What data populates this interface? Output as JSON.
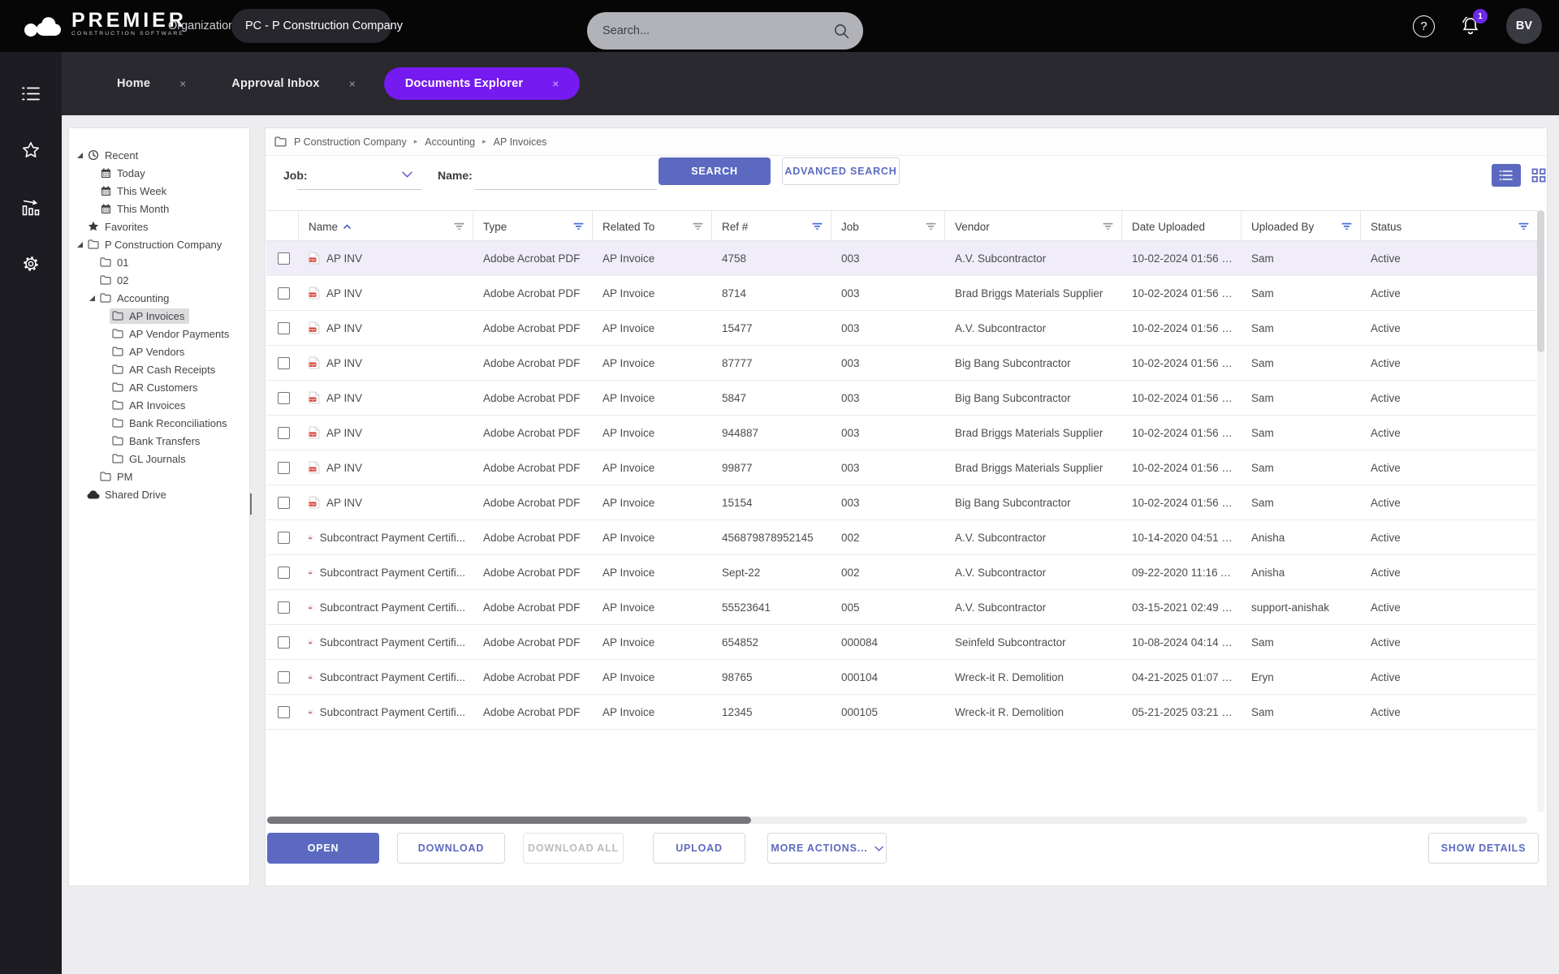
{
  "colors": {
    "accent_purple": "#751af0",
    "accent_indigo": "#5b6ac0",
    "filter_active_blue": "#4a6bd4",
    "filter_inactive_gray": "#96989b",
    "notification_badge": "#6d28e8",
    "selected_row": "#f0edf9"
  },
  "header": {
    "brand_name": "PREMIER",
    "brand_tagline": "CONSTRUCTION SOFTWARE",
    "org_label": "Organization:",
    "org_value": "PC - P Construction Company",
    "search_placeholder": "Search...",
    "notification_count": "1",
    "avatar_initials": "BV"
  },
  "tabs": [
    {
      "label": "Home",
      "active": false
    },
    {
      "label": "Approval Inbox",
      "active": false
    },
    {
      "label": "Documents Explorer",
      "active": true
    }
  ],
  "tree": {
    "items": [
      {
        "label": "Recent",
        "level": 0,
        "icon": "history",
        "caret": true,
        "selected": false
      },
      {
        "label": "Today",
        "level": 1,
        "icon": "calendar",
        "caret": false,
        "selected": false
      },
      {
        "label": "This Week",
        "level": 1,
        "icon": "calendar",
        "caret": false,
        "selected": false
      },
      {
        "label": "This Month",
        "level": 1,
        "icon": "calendar",
        "caret": false,
        "selected": false
      },
      {
        "label": "Favorites",
        "level": 0,
        "icon": "star",
        "caret": false,
        "selected": false
      },
      {
        "label": "P Construction Company",
        "level": 0,
        "icon": "folder",
        "caret": true,
        "selected": false
      },
      {
        "label": "01",
        "level": 1,
        "icon": "folder",
        "caret": false,
        "selected": false
      },
      {
        "label": "02",
        "level": 1,
        "icon": "folder",
        "caret": false,
        "selected": false
      },
      {
        "label": "Accounting",
        "level": 1,
        "icon": "folder",
        "caret": true,
        "selected": false
      },
      {
        "label": "AP Invoices",
        "level": 2,
        "icon": "folder",
        "caret": false,
        "selected": true
      },
      {
        "label": "AP Vendor Payments",
        "level": 2,
        "icon": "folder",
        "caret": false,
        "selected": false
      },
      {
        "label": "AP Vendors",
        "level": 2,
        "icon": "folder",
        "caret": false,
        "selected": false
      },
      {
        "label": "AR Cash Receipts",
        "level": 2,
        "icon": "folder",
        "caret": false,
        "selected": false
      },
      {
        "label": "AR Customers",
        "level": 2,
        "icon": "folder",
        "caret": false,
        "selected": false
      },
      {
        "label": "AR Invoices",
        "level": 2,
        "icon": "folder",
        "caret": false,
        "selected": false
      },
      {
        "label": "Bank Reconciliations",
        "level": 2,
        "icon": "folder",
        "caret": false,
        "selected": false
      },
      {
        "label": "Bank Transfers",
        "level": 2,
        "icon": "folder",
        "caret": false,
        "selected": false
      },
      {
        "label": "GL Journals",
        "level": 2,
        "icon": "folder",
        "caret": false,
        "selected": false
      },
      {
        "label": "PM",
        "level": 1,
        "icon": "folder",
        "caret": false,
        "selected": false
      },
      {
        "label": "Shared Drive",
        "level": 0,
        "icon": "cloud",
        "caret": false,
        "selected": false
      }
    ]
  },
  "breadcrumb": {
    "items": [
      "P Construction Company",
      "Accounting",
      "AP Invoices"
    ]
  },
  "filters": {
    "job_label": "Job:",
    "job_value": "",
    "name_label": "Name:",
    "name_value": "",
    "search_button": "SEARCH",
    "advanced_search_button": "ADVANCED SEARCH"
  },
  "table": {
    "columns": [
      {
        "label": "Name",
        "sort": "asc",
        "filter": "gray"
      },
      {
        "label": "Type",
        "sort": null,
        "filter": "blue"
      },
      {
        "label": "Related To",
        "sort": null,
        "filter": "gray"
      },
      {
        "label": "Ref #",
        "sort": null,
        "filter": "blue"
      },
      {
        "label": "Job",
        "sort": null,
        "filter": "gray"
      },
      {
        "label": "Vendor",
        "sort": null,
        "filter": "gray"
      },
      {
        "label": "Date Uploaded",
        "sort": null,
        "filter": null
      },
      {
        "label": "Uploaded By",
        "sort": null,
        "filter": "blue"
      },
      {
        "label": "Status",
        "sort": null,
        "filter": "blue"
      }
    ],
    "rows": [
      {
        "name": "AP INV",
        "type": "Adobe Acrobat PDF",
        "related_to": "AP Invoice",
        "ref": "4758",
        "job": "003",
        "vendor": "A.V. Subcontractor",
        "date_uploaded": "10-02-2024 01:56 P...",
        "uploaded_by": "Sam",
        "status": "Active",
        "selected": true
      },
      {
        "name": "AP INV",
        "type": "Adobe Acrobat PDF",
        "related_to": "AP Invoice",
        "ref": "8714",
        "job": "003",
        "vendor": "Brad Briggs Materials Supplier",
        "date_uploaded": "10-02-2024 01:56 P...",
        "uploaded_by": "Sam",
        "status": "Active",
        "selected": false
      },
      {
        "name": "AP INV",
        "type": "Adobe Acrobat PDF",
        "related_to": "AP Invoice",
        "ref": "15477",
        "job": "003",
        "vendor": "A.V. Subcontractor",
        "date_uploaded": "10-02-2024 01:56 P...",
        "uploaded_by": "Sam",
        "status": "Active",
        "selected": false
      },
      {
        "name": "AP INV",
        "type": "Adobe Acrobat PDF",
        "related_to": "AP Invoice",
        "ref": "87777",
        "job": "003",
        "vendor": "Big Bang Subcontractor",
        "date_uploaded": "10-02-2024 01:56 P...",
        "uploaded_by": "Sam",
        "status": "Active",
        "selected": false
      },
      {
        "name": "AP INV",
        "type": "Adobe Acrobat PDF",
        "related_to": "AP Invoice",
        "ref": "5847",
        "job": "003",
        "vendor": "Big Bang Subcontractor",
        "date_uploaded": "10-02-2024 01:56 P...",
        "uploaded_by": "Sam",
        "status": "Active",
        "selected": false
      },
      {
        "name": "AP INV",
        "type": "Adobe Acrobat PDF",
        "related_to": "AP Invoice",
        "ref": "944887",
        "job": "003",
        "vendor": "Brad Briggs Materials Supplier",
        "date_uploaded": "10-02-2024 01:56 P...",
        "uploaded_by": "Sam",
        "status": "Active",
        "selected": false
      },
      {
        "name": "AP INV",
        "type": "Adobe Acrobat PDF",
        "related_to": "AP Invoice",
        "ref": "99877",
        "job": "003",
        "vendor": "Brad Briggs Materials Supplier",
        "date_uploaded": "10-02-2024 01:56 P...",
        "uploaded_by": "Sam",
        "status": "Active",
        "selected": false
      },
      {
        "name": "AP INV",
        "type": "Adobe Acrobat PDF",
        "related_to": "AP Invoice",
        "ref": "15154",
        "job": "003",
        "vendor": "Big Bang Subcontractor",
        "date_uploaded": "10-02-2024 01:56 P...",
        "uploaded_by": "Sam",
        "status": "Active",
        "selected": false
      },
      {
        "name": "Subcontract Payment Certifi...",
        "type": "Adobe Acrobat PDF",
        "related_to": "AP Invoice",
        "ref": "456879878952145",
        "job": "002",
        "vendor": "A.V. Subcontractor",
        "date_uploaded": "10-14-2020 04:51 P...",
        "uploaded_by": "Anisha",
        "status": "Active",
        "selected": false
      },
      {
        "name": "Subcontract Payment Certifi...",
        "type": "Adobe Acrobat PDF",
        "related_to": "AP Invoice",
        "ref": "Sept-22",
        "job": "002",
        "vendor": "A.V. Subcontractor",
        "date_uploaded": "09-22-2020 11:16 A...",
        "uploaded_by": "Anisha",
        "status": "Active",
        "selected": false
      },
      {
        "name": "Subcontract Payment Certifi...",
        "type": "Adobe Acrobat PDF",
        "related_to": "AP Invoice",
        "ref": "55523641",
        "job": "005",
        "vendor": "A.V. Subcontractor",
        "date_uploaded": "03-15-2021 02:49 P...",
        "uploaded_by": "support-anishak",
        "status": "Active",
        "selected": false
      },
      {
        "name": "Subcontract Payment Certifi...",
        "type": "Adobe Acrobat PDF",
        "related_to": "AP Invoice",
        "ref": "654852",
        "job": "000084",
        "vendor": "Seinfeld Subcontractor",
        "date_uploaded": "10-08-2024 04:14 P...",
        "uploaded_by": "Sam",
        "status": "Active",
        "selected": false
      },
      {
        "name": "Subcontract Payment Certifi...",
        "type": "Adobe Acrobat PDF",
        "related_to": "AP Invoice",
        "ref": "98765",
        "job": "000104",
        "vendor": "Wreck-it R. Demolition",
        "date_uploaded": "04-21-2025 01:07 P...",
        "uploaded_by": "Eryn",
        "status": "Active",
        "selected": false
      },
      {
        "name": "Subcontract Payment Certifi...",
        "type": "Adobe Acrobat PDF",
        "related_to": "AP Invoice",
        "ref": "12345",
        "job": "000105",
        "vendor": "Wreck-it R. Demolition",
        "date_uploaded": "05-21-2025 03:21 P...",
        "uploaded_by": "Sam",
        "status": "Active",
        "selected": false
      }
    ]
  },
  "actions": {
    "buttons": [
      {
        "label": "OPEN",
        "style": "primary",
        "chevron": false
      },
      {
        "label": "DOWNLOAD",
        "style": "outline",
        "chevron": false
      },
      {
        "label": "DOWNLOAD ALL",
        "style": "disabled",
        "chevron": false
      },
      {
        "label": "UPLOAD",
        "style": "outline",
        "chevron": false
      },
      {
        "label": "MORE ACTIONS...",
        "style": "outline",
        "chevron": true
      }
    ],
    "show_details": "SHOW DETAILS"
  }
}
